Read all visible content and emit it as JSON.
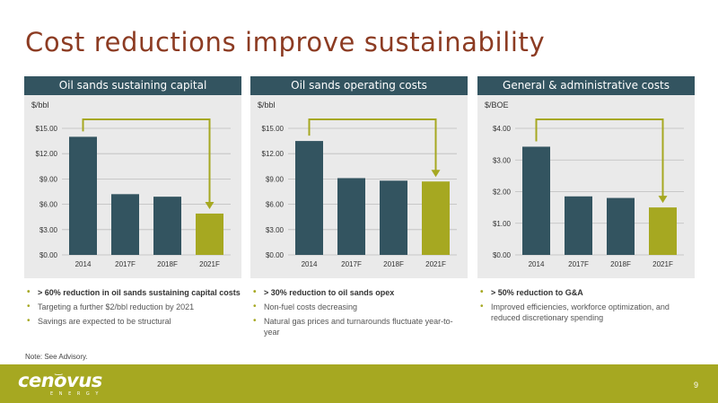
{
  "slide": {
    "title": "Cost reductions improve sustainability",
    "note": "Note: See Advisory.",
    "page_number": "9",
    "logo": {
      "name": "cenovus",
      "sub": "ENERGY"
    }
  },
  "colors": {
    "bar": "#335460",
    "highlight": "#a6a821",
    "title": "#8c3b22",
    "panel_bg": "#eaeaea"
  },
  "chart_data": [
    {
      "type": "bar",
      "title": "Oil sands sustaining capital",
      "ylabel": "$/bbl",
      "categories": [
        "2014",
        "2017F",
        "2018F",
        "2021F"
      ],
      "values": [
        14.0,
        7.2,
        6.9,
        4.9
      ],
      "ylim": [
        0,
        15
      ],
      "yticks": [
        0,
        3,
        6,
        9,
        12,
        15
      ],
      "ytick_labels": [
        "$0.00",
        "$3.00",
        "$6.00",
        "$9.00",
        "$12.00",
        "$15.00"
      ],
      "highlight_index": 3,
      "grid": true,
      "arrow": {
        "from": "2014",
        "to": "2021F"
      },
      "bullets": [
        {
          "text": "> 60% reduction in oil sands sustaining capital costs",
          "strong": true
        },
        {
          "text": "Targeting a further $2/bbl reduction by 2021",
          "strong": false
        },
        {
          "text": "Savings are expected to be structural",
          "strong": false
        }
      ]
    },
    {
      "type": "bar",
      "title": "Oil sands operating costs",
      "ylabel": "$/bbl",
      "categories": [
        "2014",
        "2017F",
        "2018F",
        "2021F"
      ],
      "values": [
        13.5,
        9.1,
        8.8,
        8.7
      ],
      "ylim": [
        0,
        15
      ],
      "yticks": [
        0,
        3,
        6,
        9,
        12,
        15
      ],
      "ytick_labels": [
        "$0.00",
        "$3.00",
        "$6.00",
        "$9.00",
        "$12.00",
        "$15.00"
      ],
      "highlight_index": 3,
      "grid": true,
      "arrow": {
        "from": "2014",
        "to": "2021F"
      },
      "bullets": [
        {
          "text": "> 30% reduction to oil sands opex",
          "strong": true
        },
        {
          "text": "Non-fuel costs decreasing",
          "strong": false
        },
        {
          "text": "Natural gas prices and turnarounds fluctuate year-to-year",
          "strong": false
        }
      ]
    },
    {
      "type": "bar",
      "title": "General & administrative costs",
      "ylabel": "$/BOE",
      "categories": [
        "2014",
        "2017F",
        "2018F",
        "2021F"
      ],
      "values": [
        3.42,
        1.85,
        1.8,
        1.5
      ],
      "ylim": [
        0,
        4
      ],
      "yticks": [
        0,
        1,
        2,
        3,
        4
      ],
      "ytick_labels": [
        "$0.00",
        "$1.00",
        "$2.00",
        "$3.00",
        "$4.00"
      ],
      "highlight_index": 3,
      "grid": true,
      "arrow": {
        "from": "2014",
        "to": "2021F"
      },
      "bullets": [
        {
          "text": "> 50% reduction to G&A",
          "strong": true
        },
        {
          "text": "Improved efficiencies, workforce optimization, and reduced discretionary spending",
          "strong": false
        }
      ]
    }
  ]
}
